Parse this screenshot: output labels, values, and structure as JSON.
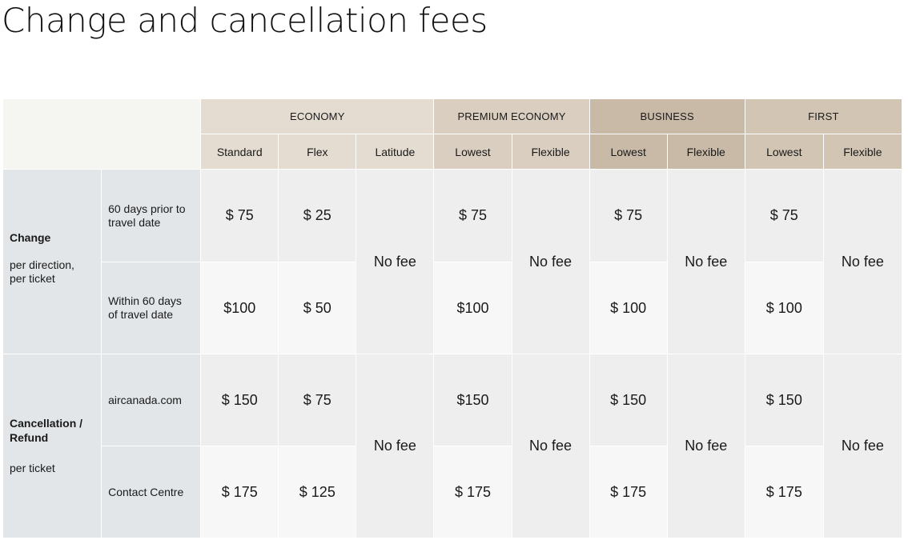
{
  "title": "Change and cancellation fees",
  "groups": [
    "ECONOMY",
    "PREMIUM ECONOMY",
    "BUSINESS",
    "FIRST"
  ],
  "subheaders": [
    "Standard",
    "Flex",
    "Latitude",
    "Lowest",
    "Flexible",
    "Lowest",
    "Flexible",
    "Lowest",
    "Flexible"
  ],
  "change": {
    "title": "Change",
    "note": "per direction, per ticket",
    "rows": [
      {
        "label": "60 days prior to travel date",
        "standard": "$ 75",
        "flex": "$ 25",
        "premium_lowest": "$ 75",
        "business_lowest": "$ 75",
        "first_lowest": "$ 75"
      },
      {
        "label": "Within 60 days of travel date",
        "standard": "$100",
        "flex": "$ 50",
        "premium_lowest": "$100",
        "business_lowest": "$ 100",
        "first_lowest": "$ 100"
      }
    ],
    "latitude": "No fee",
    "premium_flexible": "No fee",
    "business_flexible": "No fee",
    "first_flexible": "No fee"
  },
  "cancellation": {
    "title": "Cancellation / Refund",
    "note": "per ticket",
    "rows": [
      {
        "label": "aircanada.com",
        "standard": "$ 150",
        "flex": "$ 75",
        "premium_lowest": "$150",
        "business_lowest": "$ 150",
        "first_lowest": "$ 150"
      },
      {
        "label": "Contact Centre",
        "standard": "$ 175",
        "flex": "$ 125",
        "premium_lowest": "$ 175",
        "business_lowest": "$ 175",
        "first_lowest": "$ 175"
      }
    ],
    "latitude": "No fee",
    "premium_flexible": "No fee",
    "business_flexible": "No fee",
    "first_flexible": "No fee"
  }
}
